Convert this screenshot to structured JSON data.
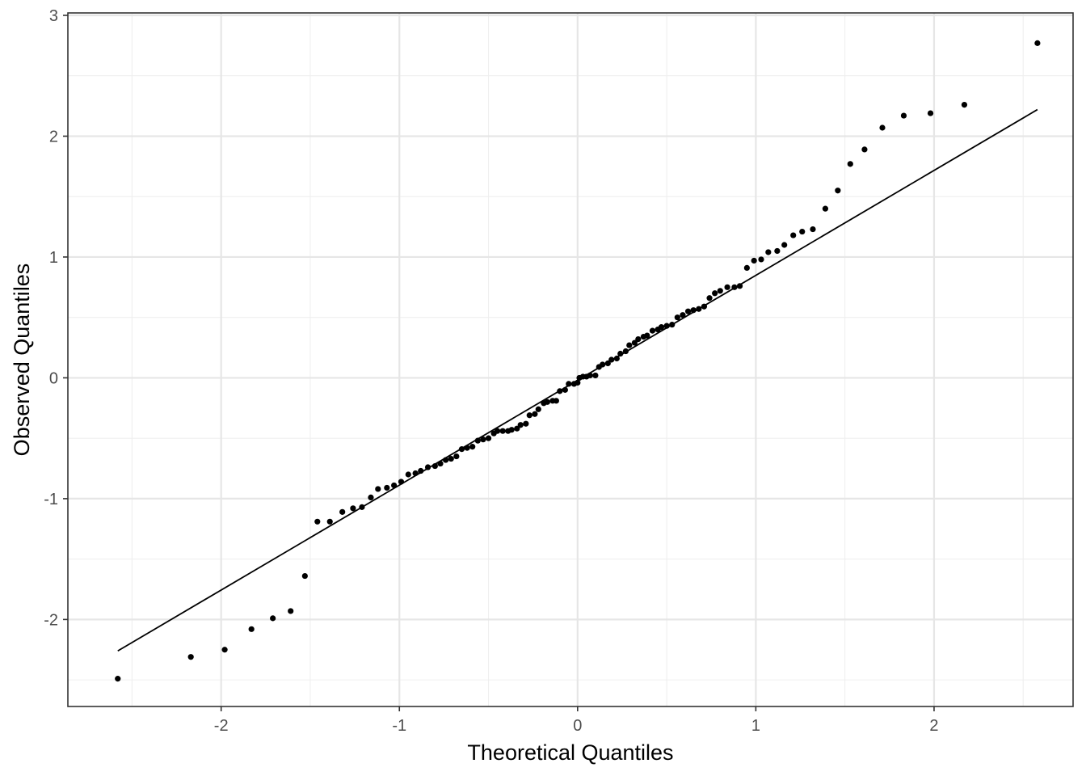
{
  "chart_data": {
    "type": "scatter",
    "title": "",
    "xlabel": "Theoretical Quantiles",
    "ylabel": "Observed Quantiles",
    "xlim": [
      -2.86,
      2.78
    ],
    "ylim": [
      -2.72,
      3.02
    ],
    "x_ticks": [
      -2,
      -1,
      0,
      1,
      2
    ],
    "y_ticks": [
      -2,
      -1,
      0,
      1,
      2,
      3
    ],
    "x_minor": [
      -2.5,
      -1.5,
      -0.5,
      0.5,
      1.5,
      2.5
    ],
    "y_minor": [
      -2.5,
      -1.5,
      -0.5,
      0.5,
      1.5,
      2.5
    ],
    "grid": true,
    "reference_line": {
      "x": [
        -2.58,
        2.58
      ],
      "y": [
        -2.26,
        2.22
      ]
    },
    "series": [
      {
        "points": [
          [
            -2.58,
            -2.49
          ],
          [
            -2.17,
            -2.31
          ],
          [
            -1.98,
            -2.25
          ],
          [
            -1.83,
            -2.08
          ],
          [
            -1.71,
            -1.99
          ],
          [
            -1.61,
            -1.93
          ],
          [
            -1.53,
            -1.64
          ],
          [
            -1.46,
            -1.19
          ],
          [
            -1.39,
            -1.19
          ],
          [
            -1.32,
            -1.11
          ],
          [
            -1.26,
            -1.08
          ],
          [
            -1.21,
            -1.07
          ],
          [
            -1.16,
            -0.99
          ],
          [
            -1.12,
            -0.92
          ],
          [
            -1.07,
            -0.91
          ],
          [
            -1.03,
            -0.89
          ],
          [
            -0.99,
            -0.86
          ],
          [
            -0.95,
            -0.8
          ],
          [
            -0.91,
            -0.79
          ],
          [
            -0.88,
            -0.77
          ],
          [
            -0.84,
            -0.74
          ],
          [
            -0.8,
            -0.73
          ],
          [
            -0.77,
            -0.71
          ],
          [
            -0.74,
            -0.68
          ],
          [
            -0.71,
            -0.67
          ],
          [
            -0.68,
            -0.65
          ],
          [
            -0.65,
            -0.59
          ],
          [
            -0.62,
            -0.58
          ],
          [
            -0.59,
            -0.57
          ],
          [
            -0.56,
            -0.52
          ],
          [
            -0.53,
            -0.51
          ],
          [
            -0.5,
            -0.5
          ],
          [
            -0.47,
            -0.46
          ],
          [
            -0.45,
            -0.44
          ],
          [
            -0.42,
            -0.44
          ],
          [
            -0.39,
            -0.44
          ],
          [
            -0.37,
            -0.43
          ],
          [
            -0.34,
            -0.42
          ],
          [
            -0.32,
            -0.39
          ],
          [
            -0.29,
            -0.38
          ],
          [
            -0.27,
            -0.31
          ],
          [
            -0.24,
            -0.3
          ],
          [
            -0.22,
            -0.26
          ],
          [
            -0.19,
            -0.21
          ],
          [
            -0.17,
            -0.2
          ],
          [
            -0.14,
            -0.19
          ],
          [
            -0.12,
            -0.19
          ],
          [
            -0.1,
            -0.11
          ],
          [
            -0.07,
            -0.1
          ],
          [
            -0.05,
            -0.05
          ],
          [
            -0.02,
            -0.05
          ],
          [
            0.0,
            -0.04
          ],
          [
            0.01,
            0.0
          ],
          [
            0.03,
            0.01
          ],
          [
            0.05,
            0.01
          ],
          [
            0.07,
            0.02
          ],
          [
            0.1,
            0.02
          ],
          [
            0.12,
            0.09
          ],
          [
            0.14,
            0.11
          ],
          [
            0.17,
            0.12
          ],
          [
            0.19,
            0.15
          ],
          [
            0.22,
            0.16
          ],
          [
            0.24,
            0.2
          ],
          [
            0.27,
            0.22
          ],
          [
            0.29,
            0.27
          ],
          [
            0.32,
            0.29
          ],
          [
            0.34,
            0.32
          ],
          [
            0.37,
            0.34
          ],
          [
            0.39,
            0.35
          ],
          [
            0.42,
            0.39
          ],
          [
            0.45,
            0.4
          ],
          [
            0.47,
            0.42
          ],
          [
            0.5,
            0.43
          ],
          [
            0.53,
            0.44
          ],
          [
            0.56,
            0.5
          ],
          [
            0.59,
            0.52
          ],
          [
            0.62,
            0.55
          ],
          [
            0.65,
            0.56
          ],
          [
            0.68,
            0.57
          ],
          [
            0.71,
            0.59
          ],
          [
            0.74,
            0.66
          ],
          [
            0.77,
            0.7
          ],
          [
            0.8,
            0.72
          ],
          [
            0.84,
            0.75
          ],
          [
            0.88,
            0.75
          ],
          [
            0.91,
            0.76
          ],
          [
            0.95,
            0.91
          ],
          [
            0.99,
            0.97
          ],
          [
            1.03,
            0.98
          ],
          [
            1.07,
            1.04
          ],
          [
            1.12,
            1.05
          ],
          [
            1.16,
            1.1
          ],
          [
            1.21,
            1.18
          ],
          [
            1.26,
            1.21
          ],
          [
            1.32,
            1.23
          ],
          [
            1.39,
            1.4
          ],
          [
            1.46,
            1.55
          ],
          [
            1.53,
            1.77
          ],
          [
            1.61,
            1.89
          ],
          [
            1.71,
            2.07
          ],
          [
            1.83,
            2.17
          ],
          [
            1.98,
            2.19
          ],
          [
            2.17,
            2.26
          ],
          [
            2.58,
            2.77
          ]
        ]
      }
    ]
  }
}
